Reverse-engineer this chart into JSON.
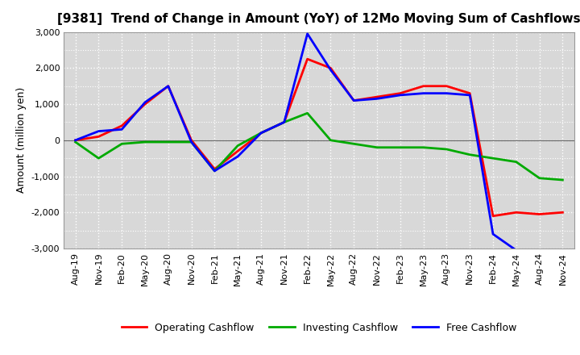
{
  "title": "[9381]  Trend of Change in Amount (YoY) of 12Mo Moving Sum of Cashflows",
  "ylabel": "Amount (million yen)",
  "x_labels": [
    "Aug-19",
    "Nov-19",
    "Feb-20",
    "May-20",
    "Aug-20",
    "Nov-20",
    "Feb-21",
    "May-21",
    "Aug-21",
    "Nov-21",
    "Feb-22",
    "May-22",
    "Aug-22",
    "Nov-22",
    "Feb-23",
    "May-23",
    "Aug-23",
    "Nov-23",
    "Feb-24",
    "May-24",
    "Aug-24",
    "Nov-24"
  ],
  "operating": [
    0,
    100,
    400,
    1000,
    1500,
    0,
    -800,
    -300,
    200,
    500,
    2250,
    2000,
    1100,
    1200,
    1300,
    1500,
    1500,
    1300,
    -2100,
    -2000,
    -2050,
    -2000
  ],
  "investing": [
    -50,
    -500,
    -100,
    -50,
    -50,
    -50,
    -850,
    -150,
    200,
    500,
    750,
    0,
    -100,
    -200,
    -200,
    -200,
    -250,
    -400,
    -500,
    -600,
    -1050,
    -1100
  ],
  "free": [
    0,
    250,
    300,
    1050,
    1500,
    -50,
    -850,
    -450,
    200,
    500,
    2950,
    1950,
    1100,
    1150,
    1250,
    1300,
    1300,
    1250,
    -2600,
    -3050,
    -3100,
    -3100
  ],
  "ylim": [
    -3000,
    3000
  ],
  "yticks": [
    -3000,
    -2000,
    -1000,
    0,
    1000,
    2000,
    3000
  ],
  "colors": {
    "operating": "#ff0000",
    "investing": "#00aa00",
    "free": "#0000ff"
  },
  "legend_labels": [
    "Operating Cashflow",
    "Investing Cashflow",
    "Free Cashflow"
  ],
  "bg_color": "#ffffff",
  "plot_bg_color": "#d8d8d8",
  "grid_color": "#ffffff",
  "linewidth": 2.0,
  "title_fontsize": 11,
  "axis_fontsize": 8,
  "ylabel_fontsize": 9,
  "legend_fontsize": 9
}
